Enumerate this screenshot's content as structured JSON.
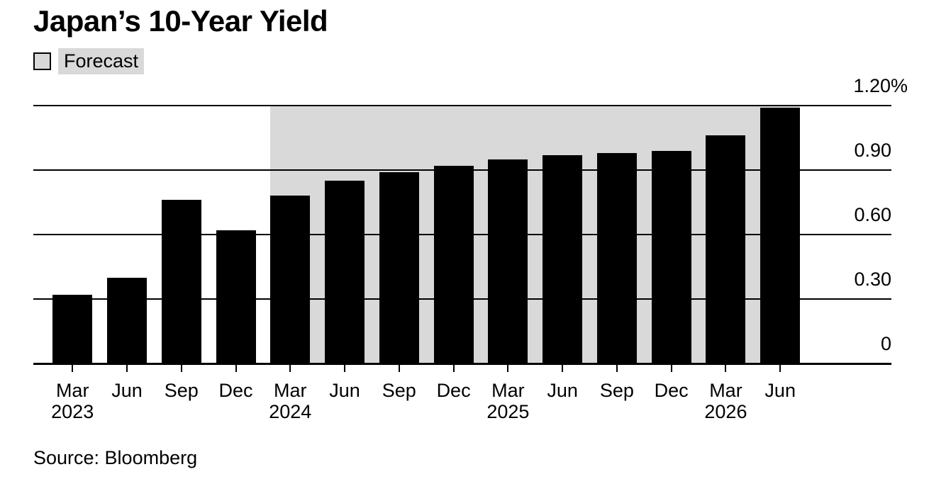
{
  "title": "Japan’s 10-Year Yield",
  "legend": {
    "label": "Forecast"
  },
  "source": "Source: Bloomberg",
  "chart_data": {
    "type": "bar",
    "title": "Japan’s 10-Year Yield",
    "source": "Source: Bloomberg",
    "categories": [
      "Mar 2023",
      "Jun 2023",
      "Sep 2023",
      "Dec 2023",
      "Mar 2024",
      "Jun 2024",
      "Sep 2024",
      "Dec 2024",
      "Mar 2025",
      "Jun 2025",
      "Sep 2025",
      "Dec 2025",
      "Mar 2026",
      "Jun 2026"
    ],
    "values": [
      0.32,
      0.4,
      0.76,
      0.62,
      0.78,
      0.85,
      0.89,
      0.92,
      0.95,
      0.97,
      0.98,
      0.99,
      1.06,
      1.19
    ],
    "unit": "%",
    "forecast": {
      "label": "Forecast",
      "start_index": 4,
      "start_category": "Mar 2024",
      "end_category": "Jun 2026"
    },
    "y_axis": {
      "side": "right",
      "ylim": [
        0,
        1.2
      ],
      "grid": true,
      "ticks": [
        {
          "label": "1.20%",
          "value": 1.2
        },
        {
          "label": "0.90",
          "value": 0.9
        },
        {
          "label": "0.60",
          "value": 0.6
        },
        {
          "label": "0.30",
          "value": 0.3
        },
        {
          "label": "0",
          "value": 0
        }
      ]
    },
    "x_axis": {
      "months": [
        "Mar",
        "Jun",
        "Sep",
        "Dec",
        "Mar",
        "Jun",
        "Sep",
        "Dec",
        "Mar",
        "Jun",
        "Sep",
        "Dec",
        "Mar",
        "Jun"
      ],
      "years": [
        {
          "index": 0,
          "label": "2023"
        },
        {
          "index": 4,
          "label": "2024"
        },
        {
          "index": 8,
          "label": "2025"
        },
        {
          "index": 12,
          "label": "2026"
        }
      ]
    },
    "colors": {
      "bar": "#000000",
      "forecast_band": "#d9d9d9",
      "grid": "#000000",
      "background": "#ffffff",
      "text": "#000000"
    }
  }
}
